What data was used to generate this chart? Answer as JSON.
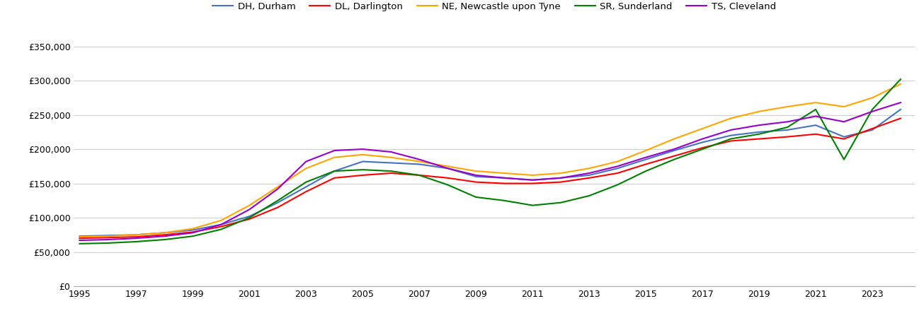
{
  "series": {
    "DH, Durham": {
      "color": "#4472C4",
      "values": [
        73000,
        74000,
        75000,
        78000,
        82000,
        90000,
        102000,
        122000,
        145000,
        168000,
        182000,
        180000,
        178000,
        172000,
        160000,
        158000,
        155000,
        158000,
        162000,
        172000,
        185000,
        198000,
        210000,
        220000,
        225000,
        228000,
        235000,
        218000,
        228000,
        258000
      ]
    },
    "DL, Darlington": {
      "color": "#FF0000",
      "values": [
        70000,
        71000,
        72000,
        75000,
        79000,
        87000,
        98000,
        115000,
        138000,
        158000,
        162000,
        165000,
        162000,
        158000,
        152000,
        150000,
        150000,
        152000,
        158000,
        165000,
        178000,
        190000,
        202000,
        212000,
        215000,
        218000,
        222000,
        215000,
        230000,
        245000
      ]
    },
    "NE, Newcastle upon Tyne": {
      "color": "#FFA500",
      "values": [
        72000,
        73000,
        75000,
        78000,
        84000,
        96000,
        118000,
        145000,
        172000,
        188000,
        192000,
        188000,
        182000,
        175000,
        168000,
        165000,
        162000,
        165000,
        172000,
        182000,
        198000,
        215000,
        230000,
        245000,
        255000,
        262000,
        268000,
        262000,
        275000,
        295000
      ]
    },
    "SR, Sunderland": {
      "color": "#008000",
      "values": [
        62000,
        63000,
        65000,
        68000,
        73000,
        83000,
        100000,
        125000,
        152000,
        168000,
        170000,
        168000,
        162000,
        148000,
        130000,
        125000,
        118000,
        122000,
        132000,
        148000,
        168000,
        185000,
        200000,
        215000,
        222000,
        232000,
        258000,
        185000,
        258000,
        302000
      ]
    },
    "TS, Cleveland": {
      "color": "#9900CC",
      "values": [
        67000,
        68000,
        70000,
        73000,
        78000,
        90000,
        112000,
        142000,
        182000,
        198000,
        200000,
        196000,
        185000,
        172000,
        162000,
        158000,
        155000,
        158000,
        165000,
        175000,
        188000,
        200000,
        215000,
        228000,
        235000,
        240000,
        248000,
        240000,
        255000,
        268000
      ]
    }
  },
  "years": [
    1995,
    1996,
    1997,
    1998,
    1999,
    2000,
    2001,
    2002,
    2003,
    2004,
    2005,
    2006,
    2007,
    2008,
    2009,
    2010,
    2011,
    2012,
    2013,
    2014,
    2015,
    2016,
    2017,
    2018,
    2019,
    2020,
    2021,
    2022,
    2023,
    2024
  ],
  "ylim": [
    0,
    362000
  ],
  "yticks": [
    0,
    50000,
    100000,
    150000,
    200000,
    250000,
    300000,
    350000
  ],
  "xlim": [
    1994.8,
    2024.5
  ],
  "xtick_years": [
    1995,
    1997,
    1999,
    2001,
    2003,
    2005,
    2007,
    2009,
    2011,
    2013,
    2015,
    2017,
    2019,
    2021,
    2023
  ],
  "background_color": "#ffffff",
  "grid_color": "#d0d0d0",
  "legend_order": [
    "DH, Durham",
    "DL, Darlington",
    "NE, Newcastle upon Tyne",
    "SR, Sunderland",
    "TS, Cleveland"
  ]
}
